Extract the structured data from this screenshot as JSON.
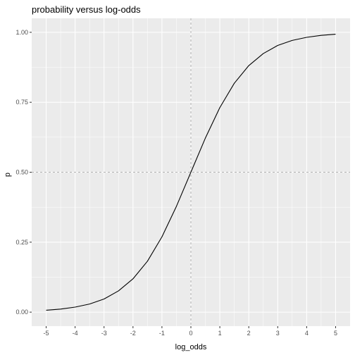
{
  "chart_data": {
    "type": "line",
    "title": "probability versus log-odds",
    "xlabel": "log_odds",
    "ylabel": "p",
    "xlim": [
      -5.5,
      5.5
    ],
    "ylim": [
      -0.05,
      1.05
    ],
    "x_ticks": [
      -5,
      -4,
      -3,
      -2,
      -1,
      0,
      1,
      2,
      3,
      4,
      5
    ],
    "x_tick_labels": [
      "-5",
      "-4",
      "-3",
      "-2",
      "-1",
      "0",
      "1",
      "2",
      "3",
      "4",
      "5"
    ],
    "y_ticks": [
      0,
      0.25,
      0.5,
      0.75,
      1.0
    ],
    "y_tick_labels": [
      "0.00",
      "0.25",
      "0.50",
      "0.75",
      "1.00"
    ],
    "reference_lines": {
      "vertical_x": 0,
      "horizontal_y": 0.5,
      "style": "dashed"
    },
    "grid": true,
    "colors": {
      "panel": "#ebebeb",
      "grid": "#ffffff",
      "line": "#000000",
      "reference": "#b3b3b3"
    },
    "series": [
      {
        "x": [
          -5,
          -4.5,
          -4,
          -3.5,
          -3,
          -2.5,
          -2,
          -1.5,
          -1,
          -0.5,
          0,
          0.5,
          1,
          1.5,
          2,
          2.5,
          3,
          3.5,
          4,
          4.5,
          5
        ],
        "values": [
          0.0067,
          0.011,
          0.018,
          0.029,
          0.047,
          0.076,
          0.119,
          0.182,
          0.269,
          0.378,
          0.5,
          0.622,
          0.731,
          0.818,
          0.881,
          0.924,
          0.953,
          0.971,
          0.982,
          0.989,
          0.9933
        ]
      }
    ]
  }
}
